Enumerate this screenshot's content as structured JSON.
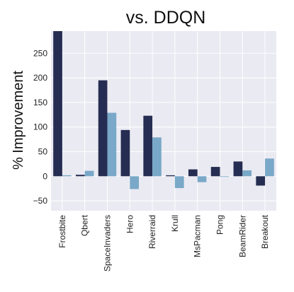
{
  "chart_data": {
    "type": "bar",
    "title": "vs. DDQN",
    "ylabel": "% Improvement",
    "xlabel": "",
    "ylim": [
      -70,
      295
    ],
    "yticks": [
      -50,
      0,
      50,
      100,
      150,
      200,
      250
    ],
    "grid": true,
    "legend": "none",
    "categories": [
      "Frostbite",
      "Qbert",
      "SpaceInvaders",
      "Hero",
      "Riverraid",
      "Krull",
      "MsPacman",
      "Pong",
      "BeamRider",
      "Breakout"
    ],
    "series": [
      {
        "color": "#262d52",
        "values": [
          295,
          3,
          195,
          94,
          123,
          2,
          14,
          19,
          30,
          -19
        ]
      },
      {
        "color": "#79a8c8",
        "values": [
          2,
          11,
          129,
          -26,
          79,
          -24,
          -12,
          -1,
          12,
          36
        ]
      }
    ]
  }
}
